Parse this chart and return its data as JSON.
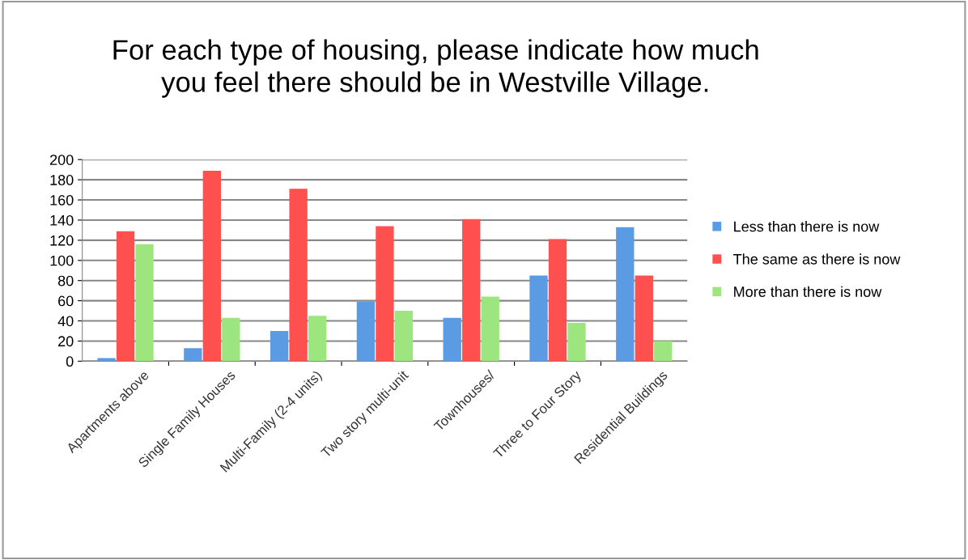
{
  "chart_data": {
    "type": "bar",
    "title": "For each type of housing, please indicate how much\nyou feel there should be in Westville Village.",
    "categories": [
      "Apartments above",
      "Single Family Houses",
      "Multi-Family (2-4 units)",
      "Two story multi-unit",
      "Townhouses/",
      "Three to Four Story",
      "Residential Buildings"
    ],
    "series": [
      {
        "name": "Less than there is now",
        "color": "#5b9be3",
        "values": [
          3,
          13,
          30,
          59,
          43,
          85,
          133
        ]
      },
      {
        "name": "The same as there is now",
        "color": "#ff5050",
        "values": [
          129,
          189,
          171,
          134,
          141,
          121,
          85
        ]
      },
      {
        "name": "More than there is now",
        "color": "#9de67f",
        "values": [
          116,
          43,
          45,
          50,
          64,
          38,
          20
        ]
      }
    ],
    "ylim": [
      0,
      200
    ],
    "yticks": [
      0,
      20,
      40,
      60,
      80,
      100,
      120,
      140,
      160,
      180,
      200
    ],
    "grid": "y",
    "legend": "right"
  }
}
